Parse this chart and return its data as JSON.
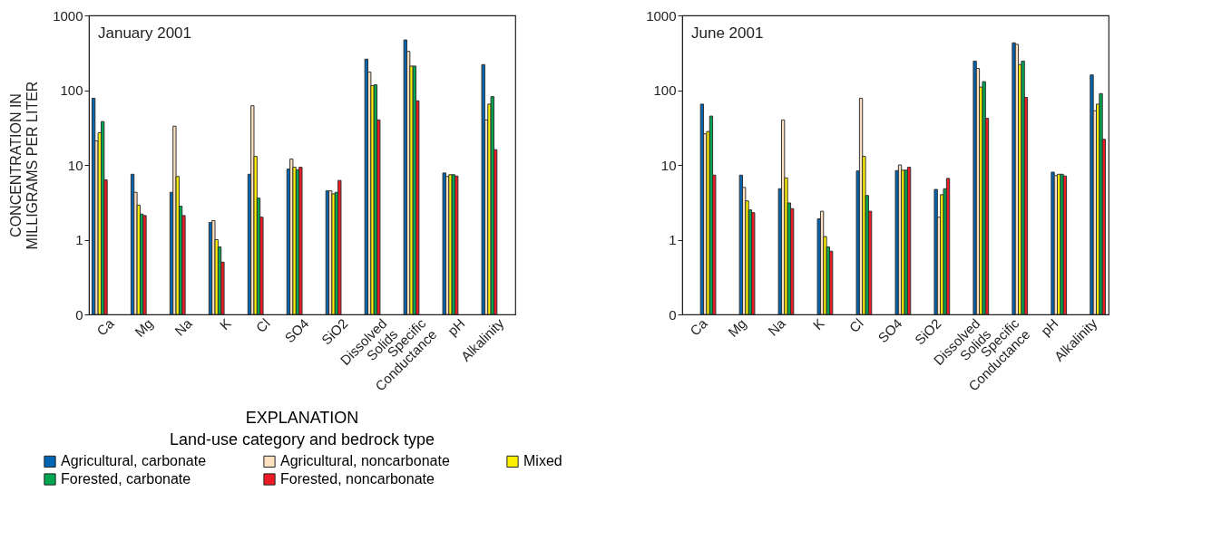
{
  "chart_data": [
    {
      "type": "bar",
      "title": "January 2001",
      "ylabel": "CONCENTRATION IN\nMILLIGRAMS PER LITER",
      "legend_title": "Land-use category and bedrock type",
      "annotations": [
        "EXPLANATION"
      ],
      "legend": "bottom",
      "log": true,
      "ylim": [
        0.1,
        1000
      ],
      "yticks": [
        {
          "value": 0.1,
          "label": "0"
        },
        1,
        10,
        100,
        1000
      ],
      "categories": [
        "Ca",
        "Mg",
        "Na",
        "K",
        "Cl",
        "SO4",
        "SiO2",
        "Dissolved\nSolids",
        "Specific\nConductance",
        "pH",
        "Alkalinity"
      ],
      "series": [
        {
          "name": "Agricultural, carbonate",
          "color": "#0066b3",
          "values": [
            78,
            7.5,
            4.3,
            1.7,
            7.5,
            8.8,
            4.5,
            260,
            470,
            7.8,
            220
          ]
        },
        {
          "name": "Agricultural, noncarbonate",
          "color": "#fde0c0",
          "values": [
            21,
            4.3,
            33,
            1.8,
            62,
            12,
            4.5,
            175,
            330,
            7.0,
            40
          ]
        },
        {
          "name": "Mixed",
          "color": "#fff200",
          "values": [
            27,
            2.9,
            7,
            1.0,
            13,
            9.3,
            4.1,
            115,
            210,
            7.4,
            65
          ]
        },
        {
          "name": "Forested, carbonate",
          "color": "#00a650",
          "values": [
            38,
            2.2,
            2.8,
            0.8,
            3.6,
            8.6,
            4.3,
            118,
            210,
            7.4,
            82
          ]
        },
        {
          "name": "Forested, noncarbonate",
          "color": "#ed1c24",
          "values": [
            6.3,
            2.1,
            2.1,
            0.5,
            2.0,
            9.3,
            6.2,
            40,
            72,
            7.1,
            16
          ]
        }
      ]
    },
    {
      "type": "bar",
      "title": "June 2001",
      "log": true,
      "ylim": [
        0.1,
        1000
      ],
      "yticks": [
        {
          "value": 0.1,
          "label": "0"
        },
        1,
        10,
        100,
        1000
      ],
      "categories": [
        "Ca",
        "Mg",
        "Na",
        "K",
        "Cl",
        "SO4",
        "SiO2",
        "Dissolved\nSolids",
        "Specific\nConductance",
        "pH",
        "Alkalinity"
      ],
      "series": [
        {
          "color": "#0066b3",
          "values": [
            65,
            7.3,
            4.8,
            1.9,
            8.3,
            8.4,
            4.7,
            245,
            430,
            8.0,
            160
          ]
        },
        {
          "color": "#fde0c0",
          "values": [
            26,
            5.0,
            40,
            2.4,
            78,
            10,
            2.0,
            195,
            410,
            7.2,
            53
          ]
        },
        {
          "color": "#fff200",
          "values": [
            28,
            3.3,
            6.7,
            1.1,
            13,
            8.5,
            4.0,
            110,
            220,
            7.5,
            65
          ]
        },
        {
          "color": "#00a650",
          "values": [
            45,
            2.5,
            3.1,
            0.8,
            3.9,
            8.5,
            4.8,
            130,
            245,
            7.5,
            90
          ]
        },
        {
          "color": "#ed1c24",
          "values": [
            7.3,
            2.3,
            2.6,
            0.7,
            2.4,
            9.3,
            6.6,
            42,
            80,
            7.1,
            22
          ]
        }
      ]
    }
  ]
}
